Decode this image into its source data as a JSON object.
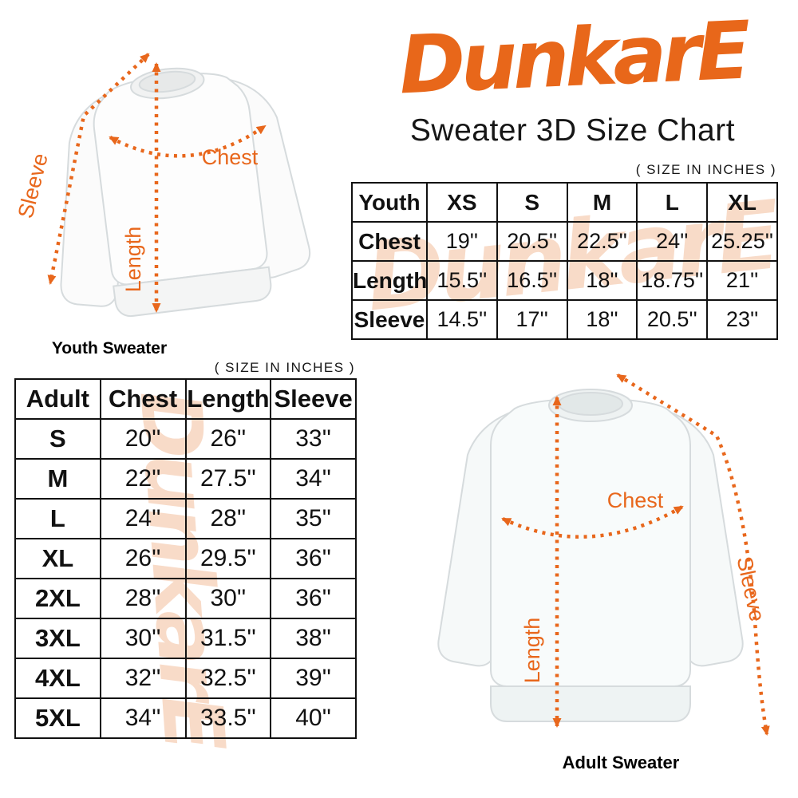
{
  "brand": {
    "logo_text": "DunkarE",
    "subtitle": "Sweater 3D Size Chart",
    "accent_color": "#E8671A",
    "watermark_color": "#F3BE9C",
    "watermark_text": "DunkarE"
  },
  "youth_section": {
    "size_note": "( SIZE IN INCHES )",
    "diagram": {
      "caption": "Youth Sweater",
      "sleeve_label": "Sleeve",
      "length_label": "Length",
      "chest_label": "Chest"
    },
    "table": {
      "header": [
        "Youth",
        "XS",
        "S",
        "M",
        "L",
        "XL"
      ],
      "rows": [
        [
          "Chest",
          "19''",
          "20.5''",
          "22.5''",
          "24''",
          "25.25''"
        ],
        [
          "Length",
          "15.5''",
          "16.5''",
          "18''",
          "18.75''",
          "21''"
        ],
        [
          "Sleeve",
          "14.5''",
          "17''",
          "18''",
          "20.5''",
          "23''"
        ]
      ]
    }
  },
  "adult_section": {
    "size_note": "( SIZE IN INCHES )",
    "diagram": {
      "caption": "Adult Sweater",
      "sleeve_label": "Sleeve",
      "length_label": "Length",
      "chest_label": "Chest"
    },
    "table": {
      "header": [
        "Adult",
        "Chest",
        "Length",
        "Sleeve"
      ],
      "rows": [
        [
          "S",
          "20''",
          "26''",
          "33''"
        ],
        [
          "M",
          "22''",
          "27.5''",
          "34''"
        ],
        [
          "L",
          "24''",
          "28''",
          "35''"
        ],
        [
          "XL",
          "26''",
          "29.5''",
          "36''"
        ],
        [
          "2XL",
          "28''",
          "30''",
          "36''"
        ],
        [
          "3XL",
          "30''",
          "31.5''",
          "38''"
        ],
        [
          "4XL",
          "32''",
          "32.5''",
          "39''"
        ],
        [
          "5XL",
          "34''",
          "33.5''",
          "40''"
        ]
      ]
    }
  }
}
